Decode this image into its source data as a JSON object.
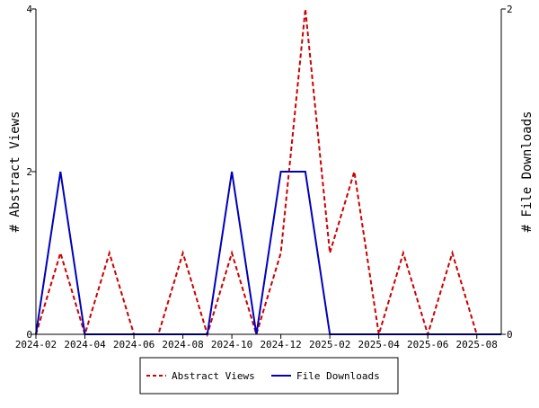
{
  "chart_data": {
    "type": "line",
    "x": [
      "2024-02",
      "2024-03",
      "2024-04",
      "2024-05",
      "2024-06",
      "2024-07",
      "2024-08",
      "2024-09",
      "2024-10",
      "2024-11",
      "2024-12",
      "2025-01",
      "2025-02",
      "2025-03",
      "2025-04",
      "2025-05",
      "2025-06",
      "2025-07",
      "2025-08",
      "2025-09"
    ],
    "xticks": [
      "2024-02",
      "2024-04",
      "2024-06",
      "2024-08",
      "2024-10",
      "2024-12",
      "2025-02",
      "2025-04",
      "2025-06",
      "2025-08"
    ],
    "series": [
      {
        "name": "Abstract Views",
        "axis": "left",
        "color": "#cc0000",
        "style": "dashed",
        "values": [
          0,
          1,
          0,
          1,
          0,
          0,
          1,
          0,
          1,
          0,
          1,
          4,
          1,
          2,
          0,
          1,
          0,
          1,
          0,
          0
        ]
      },
      {
        "name": "File Downloads",
        "axis": "right",
        "color": "#0000bb",
        "style": "solid",
        "values": [
          0,
          1,
          0,
          0,
          0,
          0,
          0,
          0,
          1,
          0,
          1,
          1,
          0,
          0,
          0,
          0,
          0,
          0,
          0,
          0
        ]
      }
    ],
    "ylabel": "# Abstract Views",
    "y2label": "# File Downloads",
    "ylim": [
      0,
      4
    ],
    "y2lim": [
      0,
      2
    ],
    "yticks": [
      "0",
      "2",
      "4"
    ],
    "y2ticks": [
      "0",
      "2"
    ],
    "grid": false,
    "legend_position": "bottom"
  }
}
